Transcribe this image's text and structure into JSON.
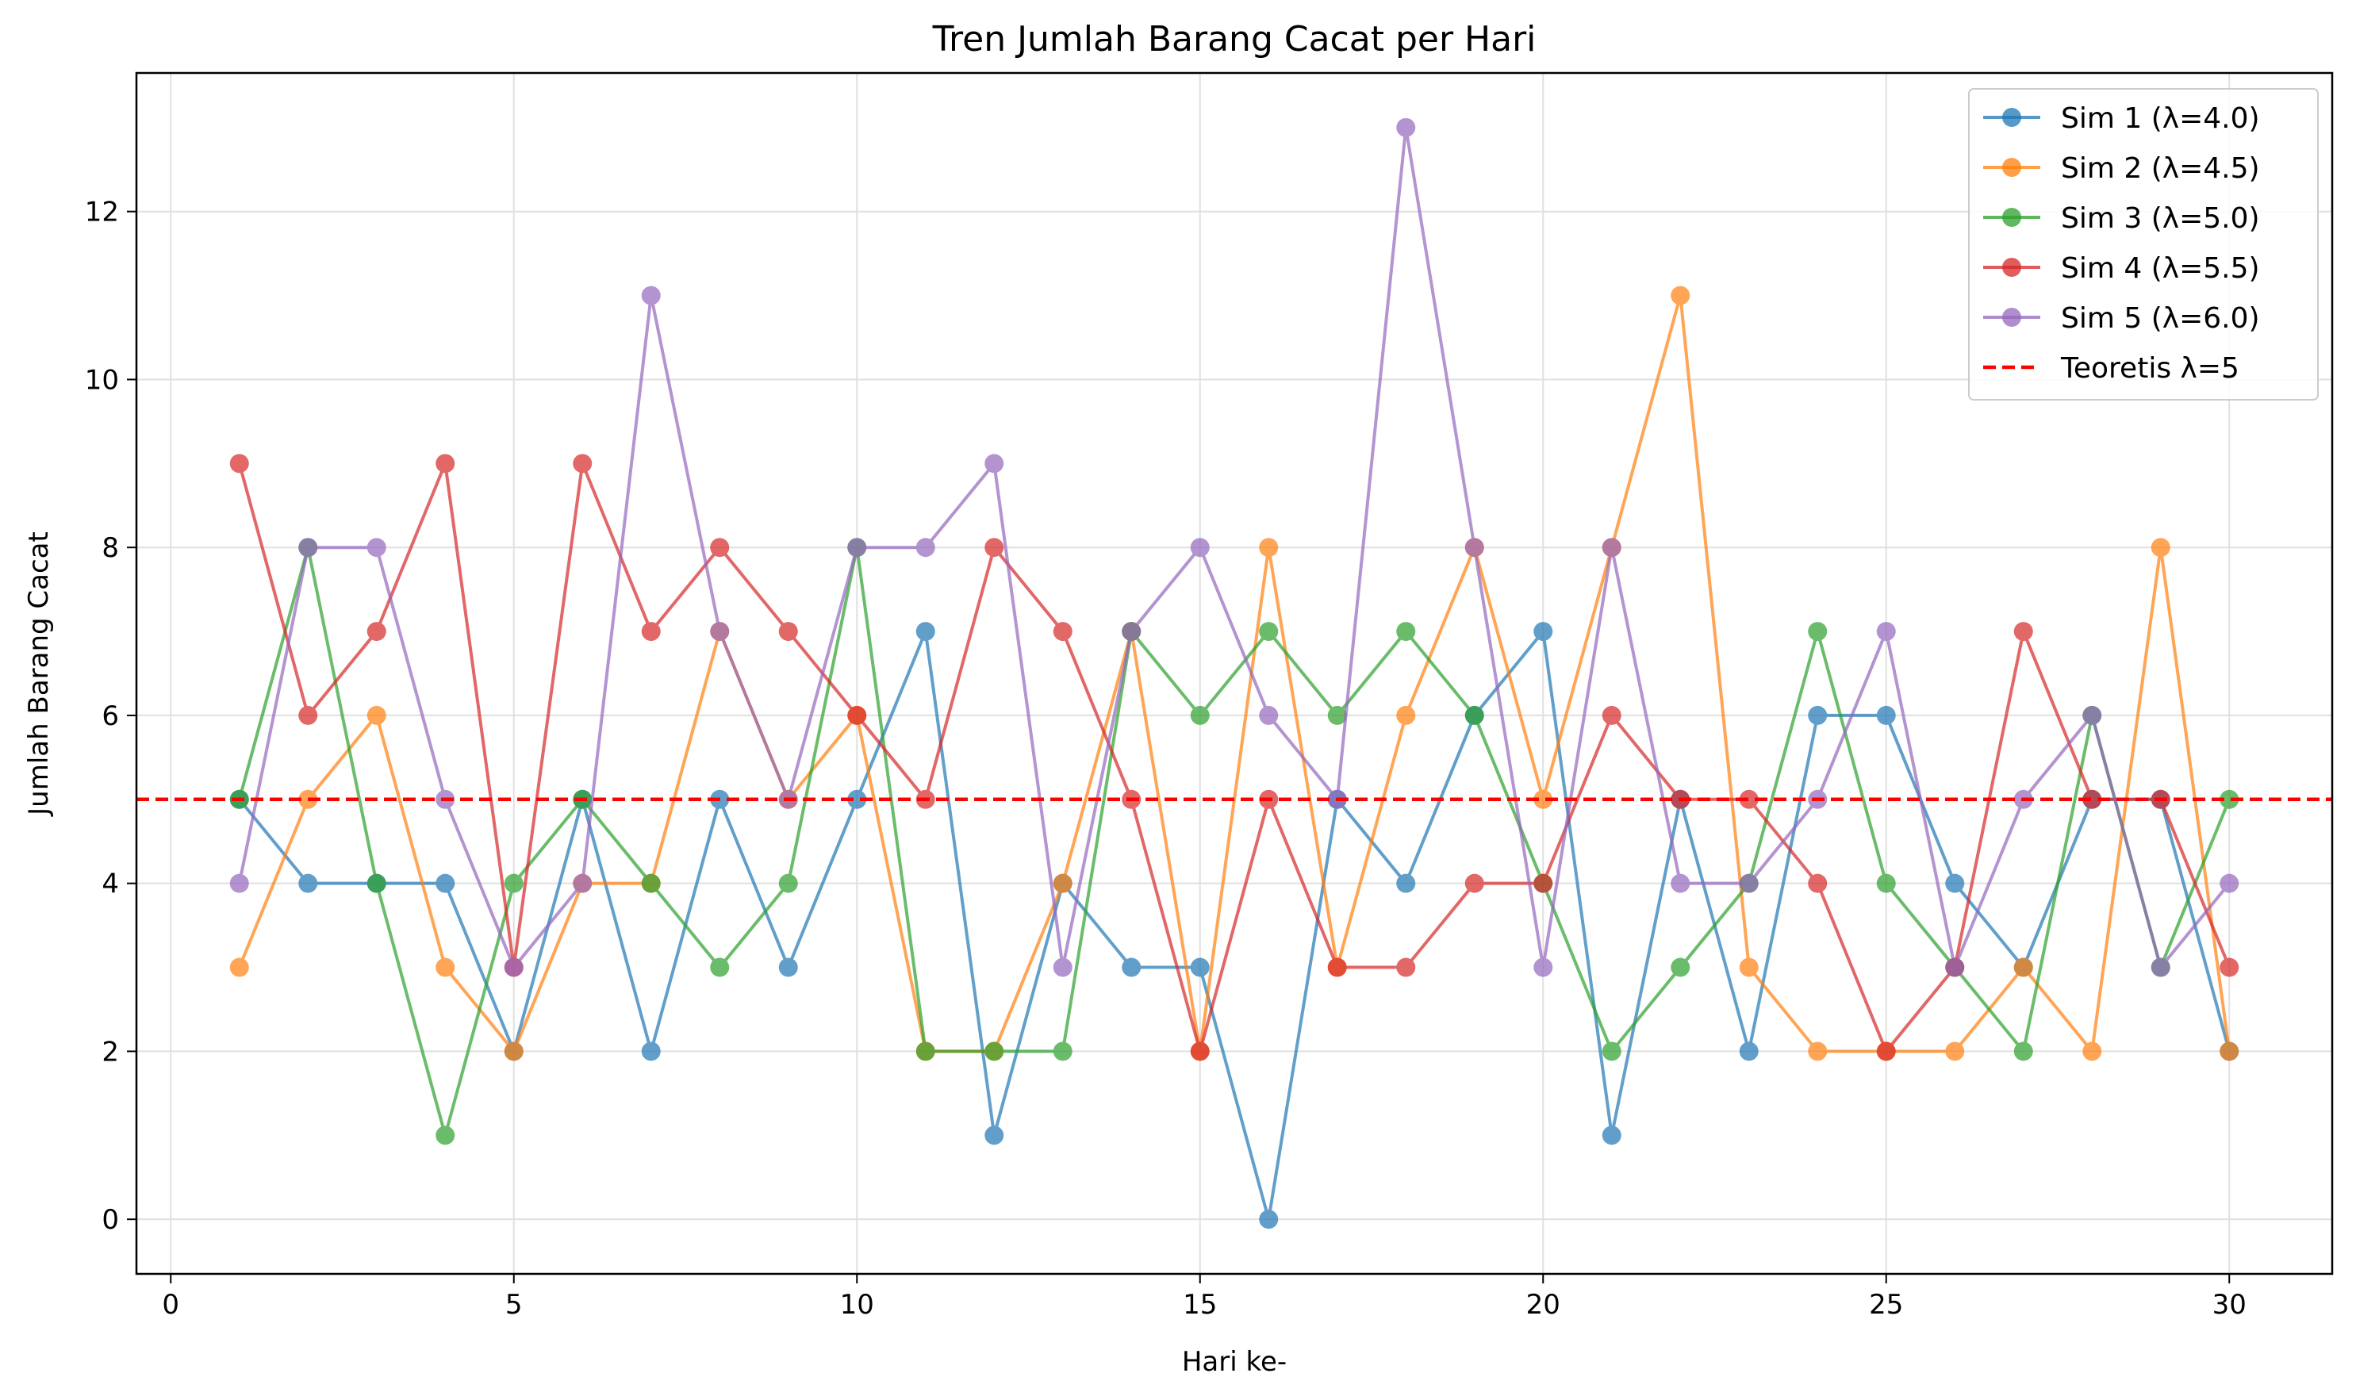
{
  "chart_data": {
    "type": "line",
    "title": "Tren Jumlah Barang Cacat per Hari",
    "xlabel": "Hari ke-",
    "ylabel": "Jumlah Barang Cacat",
    "xlim": [
      -0.5,
      31.5
    ],
    "ylim": [
      -0.65,
      13.65
    ],
    "x_ticks": [
      0,
      5,
      10,
      15,
      20,
      25,
      30
    ],
    "y_ticks": [
      0,
      2,
      4,
      6,
      8,
      10,
      12
    ],
    "grid": true,
    "legend_position": "top-right",
    "x": [
      1,
      2,
      3,
      4,
      5,
      6,
      7,
      8,
      9,
      10,
      11,
      12,
      13,
      14,
      15,
      16,
      17,
      18,
      19,
      20,
      21,
      22,
      23,
      24,
      25,
      26,
      27,
      28,
      29,
      30
    ],
    "series": [
      {
        "name": "Sim 1 (λ=4.0)",
        "color": "#1f77b4",
        "values": [
          5,
          4,
          4,
          4,
          2,
          5,
          2,
          5,
          3,
          5,
          7,
          1,
          4,
          3,
          3,
          0,
          5,
          4,
          6,
          7,
          1,
          5,
          2,
          6,
          6,
          4,
          3,
          5,
          5,
          2
        ]
      },
      {
        "name": "Sim 2 (λ=4.5)",
        "color": "#ff7f0e",
        "values": [
          3,
          5,
          6,
          3,
          2,
          4,
          4,
          7,
          5,
          6,
          2,
          2,
          4,
          7,
          2,
          8,
          3,
          6,
          8,
          5,
          8,
          11,
          3,
          2,
          2,
          2,
          3,
          2,
          8,
          2
        ]
      },
      {
        "name": "Sim 3 (λ=5.0)",
        "color": "#2ca02c",
        "values": [
          5,
          8,
          4,
          1,
          4,
          5,
          4,
          3,
          4,
          8,
          2,
          2,
          2,
          7,
          6,
          7,
          6,
          7,
          6,
          4,
          2,
          3,
          4,
          7,
          4,
          3,
          2,
          6,
          3,
          5
        ]
      },
      {
        "name": "Sim 4 (λ=5.5)",
        "color": "#d62728",
        "values": [
          9,
          6,
          7,
          9,
          3,
          9,
          7,
          8,
          7,
          6,
          5,
          8,
          7,
          5,
          2,
          5,
          3,
          3,
          4,
          4,
          6,
          5,
          5,
          4,
          2,
          3,
          7,
          5,
          5,
          3
        ]
      },
      {
        "name": "Sim 5 (λ=6.0)",
        "color": "#9467bd",
        "values": [
          4,
          8,
          8,
          5,
          3,
          4,
          11,
          7,
          5,
          8,
          8,
          9,
          3,
          7,
          8,
          6,
          5,
          13,
          8,
          3,
          8,
          4,
          4,
          5,
          7,
          3,
          5,
          6,
          3,
          4
        ]
      }
    ],
    "reference_line": {
      "name": "Teoretis λ=5",
      "value": 5,
      "color": "#ff0000",
      "style": "dashed"
    }
  }
}
